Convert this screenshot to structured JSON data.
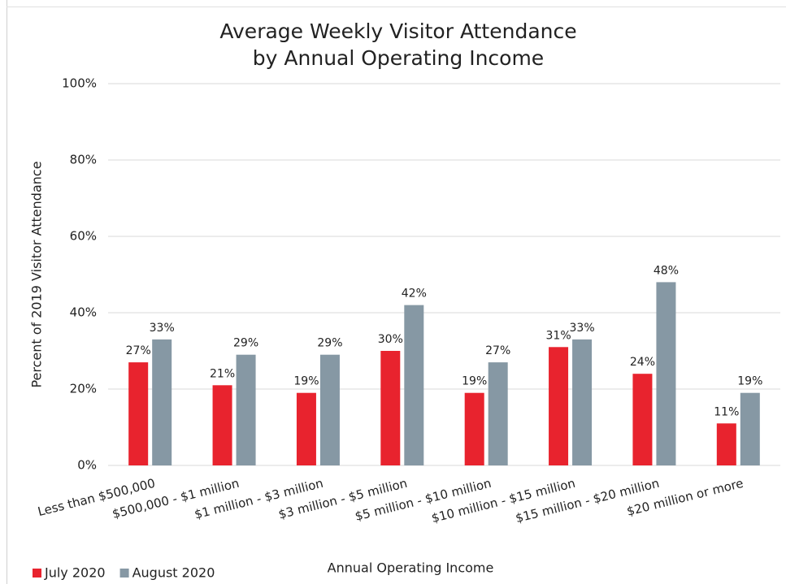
{
  "chart_data": {
    "type": "bar",
    "title": [
      "Average Weekly Visitor Attendance",
      "by Annual Operating Income"
    ],
    "x_label": "Annual Operating Income",
    "y_label": "Percent of 2019 Visitor Attendance",
    "categories": [
      "Less than $500,000",
      "$500,000 - $1 million",
      "$1 million - $3 million",
      "$3 million - $5 million",
      "$5 million - $10 million",
      "$10 million - $15 million",
      "$15 million - $20 million",
      "$20 million or more"
    ],
    "series": [
      {
        "name": "July 2020",
        "color": "#e8232e",
        "values": [
          27,
          21,
          19,
          30,
          19,
          31,
          24,
          11
        ],
        "value_labels": [
          "27%",
          "21%",
          "19%",
          "30%",
          "19%",
          "31%",
          "24%",
          "11%"
        ]
      },
      {
        "name": "August 2020",
        "color": "#8698a4",
        "values": [
          33,
          29,
          29,
          42,
          27,
          33,
          48,
          19
        ],
        "value_labels": [
          "33%",
          "29%",
          "29%",
          "42%",
          "27%",
          "33%",
          "48%",
          "19%"
        ]
      }
    ],
    "ylim": [
      0,
      100
    ],
    "yticks": [
      {
        "value": 0,
        "label": "0%"
      },
      {
        "value": 20,
        "label": "20%"
      },
      {
        "value": 40,
        "label": "40%"
      },
      {
        "value": 60,
        "label": "60%"
      },
      {
        "value": 80,
        "label": "80%"
      },
      {
        "value": 100,
        "label": "100%"
      }
    ],
    "grid": true,
    "legend": "bottom-left"
  }
}
